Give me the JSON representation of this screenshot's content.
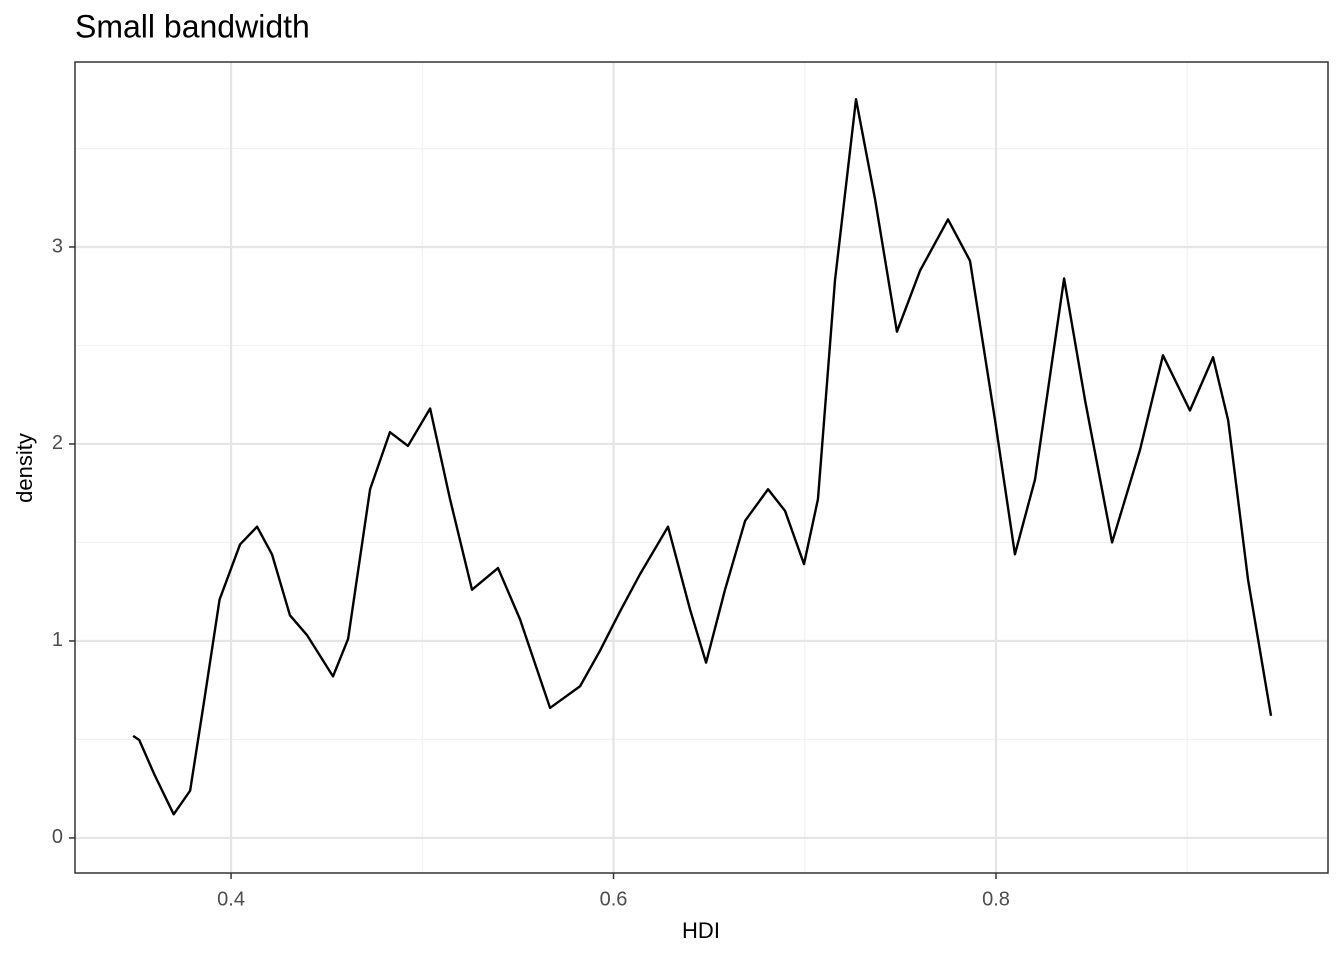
{
  "chart_data": {
    "type": "line",
    "title": "Small bandwidth",
    "x_label": "HDI",
    "y_label": "density",
    "x": [
      0.3488,
      0.352,
      0.36,
      0.37,
      0.3786,
      0.386,
      0.394,
      0.4047,
      0.4136,
      0.4214,
      0.4308,
      0.4397,
      0.4533,
      0.4612,
      0.4727,
      0.4831,
      0.4925,
      0.5041,
      0.5145,
      0.526,
      0.5396,
      0.5511,
      0.5668,
      0.5825,
      0.5929,
      0.6034,
      0.6139,
      0.6285,
      0.64,
      0.6484,
      0.6583,
      0.6688,
      0.6808,
      0.6897,
      0.6996,
      0.7069,
      0.7158,
      0.7268,
      0.7368,
      0.7482,
      0.7603,
      0.7749,
      0.7864,
      0.7995,
      0.8099,
      0.8204,
      0.8356,
      0.8466,
      0.8607,
      0.8753,
      0.8873,
      0.9014,
      0.9135,
      0.9214,
      0.9318,
      0.9438
    ],
    "series": [
      {
        "color": "#000000",
        "values": [
          0.518,
          0.497,
          0.32,
          0.12,
          0.24,
          0.7,
          1.21,
          1.49,
          1.58,
          1.44,
          1.13,
          1.03,
          0.82,
          1.01,
          1.77,
          2.06,
          1.99,
          2.18,
          1.72,
          1.26,
          1.37,
          1.11,
          0.66,
          0.77,
          0.95,
          1.15,
          1.34,
          1.58,
          1.16,
          0.89,
          1.26,
          1.61,
          1.77,
          1.66,
          1.39,
          1.72,
          2.83,
          3.75,
          3.24,
          2.57,
          2.88,
          3.14,
          2.93,
          2.12,
          1.44,
          1.82,
          2.84,
          2.22,
          1.5,
          1.97,
          2.45,
          2.17,
          2.44,
          2.12,
          1.31,
          0.62
        ]
      }
    ],
    "xlim": [
      0.3184,
      0.9736
    ],
    "ylim": [
      -0.178,
      3.939
    ],
    "xticks": [
      {
        "value": 0.4,
        "label": "0.4"
      },
      {
        "value": 0.6,
        "label": "0.6"
      },
      {
        "value": 0.8,
        "label": "0.8"
      }
    ],
    "yticks": [
      0,
      1,
      2,
      3
    ],
    "grid": true
  }
}
